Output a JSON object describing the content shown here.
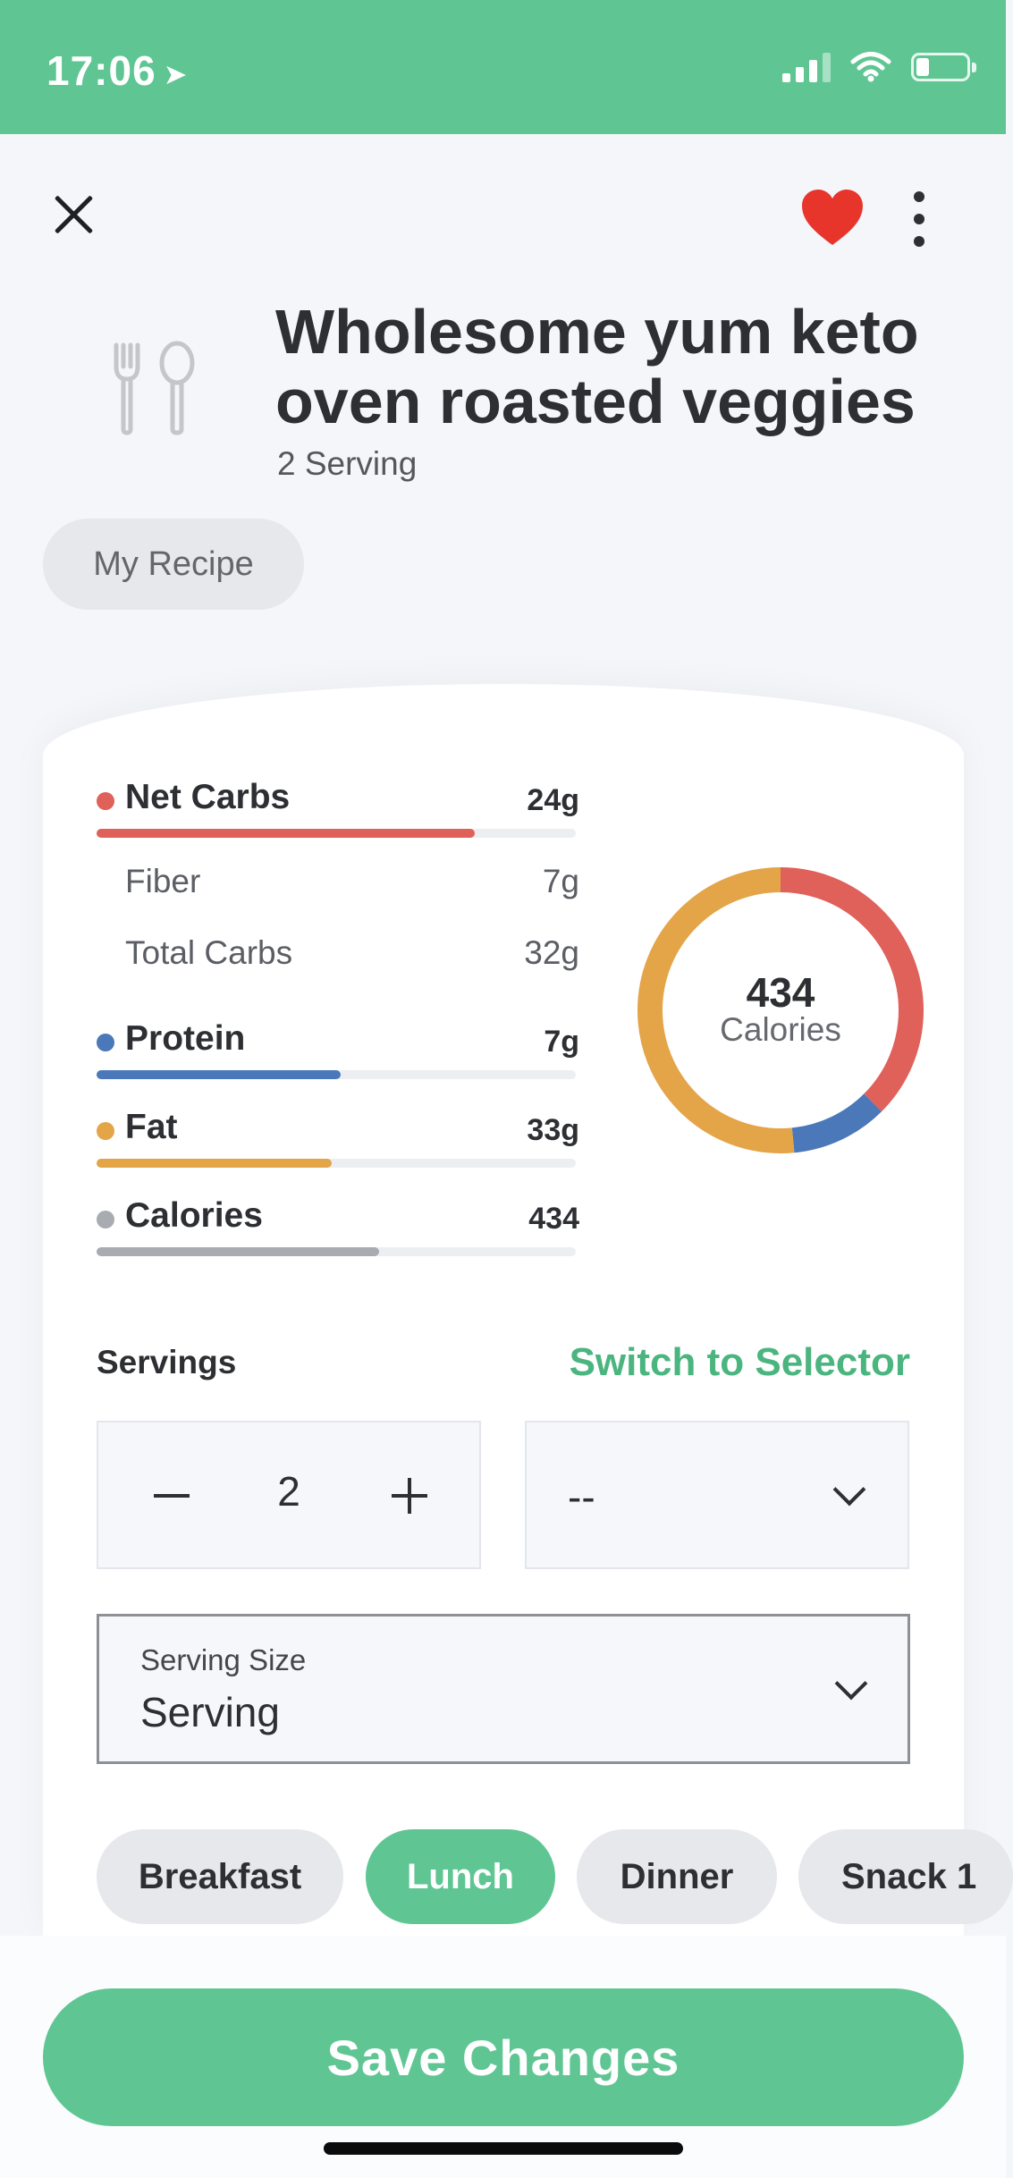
{
  "status_bar": {
    "time": "17:06"
  },
  "recipe": {
    "title_line1": "Wholesome yum keto",
    "title_line2": "oven roasted veggies",
    "subtitle": "2 Serving",
    "tag": "My Recipe"
  },
  "macros": {
    "net_carbs": {
      "label": "Net Carbs",
      "value": "24g",
      "color": "#e0605a",
      "progress": 0.79
    },
    "fiber": {
      "label": "Fiber",
      "value": "7g"
    },
    "total_carbs": {
      "label": "Total Carbs",
      "value": "32g"
    },
    "protein": {
      "label": "Protein",
      "value": "7g",
      "color": "#4a78b8",
      "progress": 0.51
    },
    "fat": {
      "label": "Fat",
      "value": "33g",
      "color": "#e4a448",
      "progress": 0.49
    },
    "calories": {
      "label": "Calories",
      "value": "434",
      "color": "#a8abb0",
      "progress": 0.59
    }
  },
  "chart_data": {
    "type": "pie",
    "categories": [
      "Net Carbs",
      "Protein",
      "Fat"
    ],
    "values": [
      24,
      7,
      33
    ],
    "colors": [
      "#e0605a",
      "#4a78b8",
      "#e4a448"
    ],
    "center_value": "434",
    "center_label": "Calories"
  },
  "servings": {
    "label": "Servings",
    "switch_label": "Switch to Selector",
    "quantity": "2",
    "unit_value": "--",
    "size_label": "Serving Size",
    "size_value": "Serving"
  },
  "meals": [
    "Breakfast",
    "Lunch",
    "Dinner",
    "Snack 1"
  ],
  "active_meal": "Lunch",
  "save_label": "Save Changes",
  "colors": {
    "brand_green": "#5fc693",
    "heart_red": "#e8352c"
  },
  "icons": [
    "location-arrow-icon",
    "signal-icon",
    "wifi-icon",
    "battery-icon",
    "close-icon",
    "heart-icon",
    "more-icon",
    "cutlery-icon",
    "minus-icon",
    "plus-icon",
    "chevron-down-icon"
  ]
}
